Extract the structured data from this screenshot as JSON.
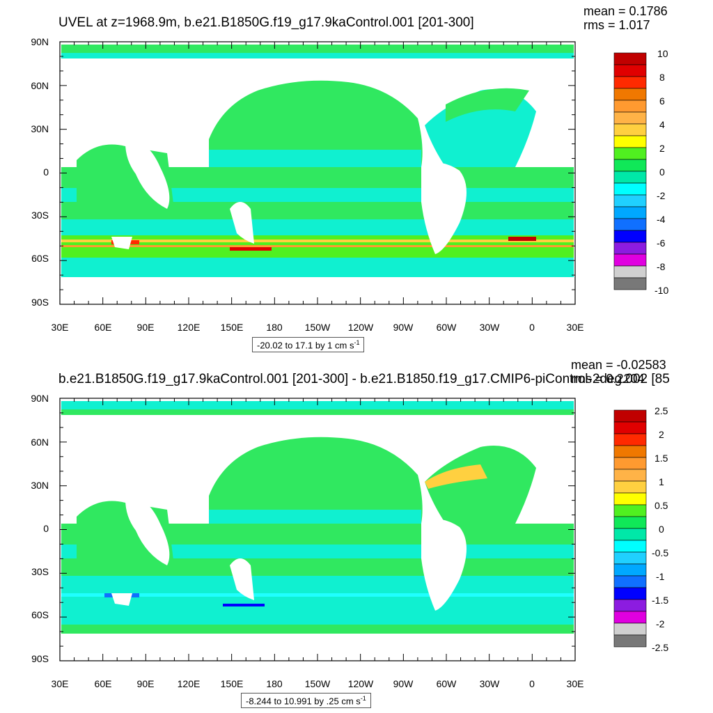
{
  "panels": [
    {
      "title": "UVEL at z=1968.9m, b.e21.B1850G.f19_g17.9kaControl.001 [201-300]",
      "mean": "mean = 0.1786",
      "rms": "rms = 1.017",
      "range_text": "-20.02 to 17.1 by 1 cm s",
      "range_sup": "-1",
      "colorbar_labels": [
        "10",
        "8",
        "6",
        "4",
        "2",
        "0",
        "-2",
        "-4",
        "-6",
        "-8",
        "-10"
      ]
    },
    {
      "title": "b.e21.B1850G.f19_g17.9kaControl.001 [201-300] - b.e21.B1850.f19_g17.CMIP6-piControl-2deg.002 [85",
      "mean": "mean = -0.02583",
      "rms": "rms = 0.2204",
      "range_text": "-8.244 to 10.991 by .25 cm s",
      "range_sup": "-1",
      "colorbar_labels": [
        "2.5",
        "2",
        "1.5",
        "1",
        "0.5",
        "0",
        "-0.5",
        "-1",
        "-1.5",
        "-2",
        "-2.5"
      ]
    }
  ],
  "lat_labels": [
    "90N",
    "60N",
    "30N",
    "0",
    "30S",
    "60S",
    "90S"
  ],
  "lon_labels": [
    "30E",
    "60E",
    "90E",
    "120E",
    "150E",
    "180",
    "150W",
    "120W",
    "90W",
    "60W",
    "30W",
    "0",
    "30E"
  ],
  "colors": {
    "colorbar": [
      "#c00000",
      "#e00000",
      "#ff2a00",
      "#f07800",
      "#ff9a30",
      "#ffb347",
      "#ffd040",
      "#ffff00",
      "#50f020",
      "#10e858",
      "#00e8a8",
      "#00ffff",
      "#20d0ff",
      "#00a8ff",
      "#1070ff",
      "#0000ff",
      "#8c1ce0",
      "#e000e0",
      "#d0d0d0",
      "#787878"
    ],
    "ocean_green": "#30e860",
    "ocean_cyan": "#10f0d0",
    "ocean_lightcyan": "#20ffff",
    "land": "#ffffff"
  }
}
